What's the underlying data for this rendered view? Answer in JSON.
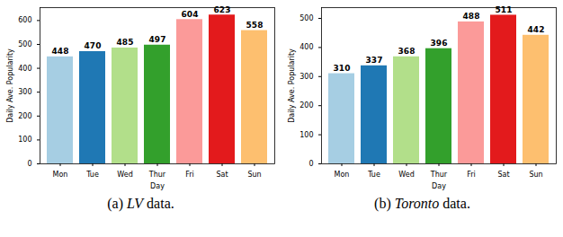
{
  "chart_data": [
    {
      "type": "bar",
      "title": "(a) LV data.",
      "x_label": "Day",
      "y_label": "Daily Ave. Popularity",
      "categories": [
        "Mon",
        "Tue",
        "Wed",
        "Thur",
        "Fri",
        "Sat",
        "Sun"
      ],
      "values": [
        448,
        470,
        485,
        497,
        604,
        623,
        558
      ],
      "colors": [
        "#a6cee3",
        "#1f78b4",
        "#b2df8a",
        "#33a02c",
        "#fb9a99",
        "#e31a1c",
        "#fdbf6f"
      ],
      "ylim": [
        0,
        654
      ],
      "yticks": [
        0,
        100,
        200,
        300,
        400,
        500,
        600
      ],
      "data_labels": true,
      "grid": false
    },
    {
      "type": "bar",
      "title": "(b) Toronto data.",
      "x_label": "Day",
      "y_label": "Daily Ave. Popularity",
      "categories": [
        "Mon",
        "Tue",
        "Wed",
        "Thur",
        "Fri",
        "Sat",
        "Sun"
      ],
      "values": [
        310,
        337,
        368,
        396,
        488,
        511,
        442
      ],
      "colors": [
        "#a6cee3",
        "#1f78b4",
        "#b2df8a",
        "#33a02c",
        "#fb9a99",
        "#e31a1c",
        "#fdbf6f"
      ],
      "ylim": [
        0,
        537
      ],
      "yticks": [
        0,
        100,
        200,
        300,
        400,
        500
      ],
      "data_labels": true,
      "grid": false
    }
  ]
}
